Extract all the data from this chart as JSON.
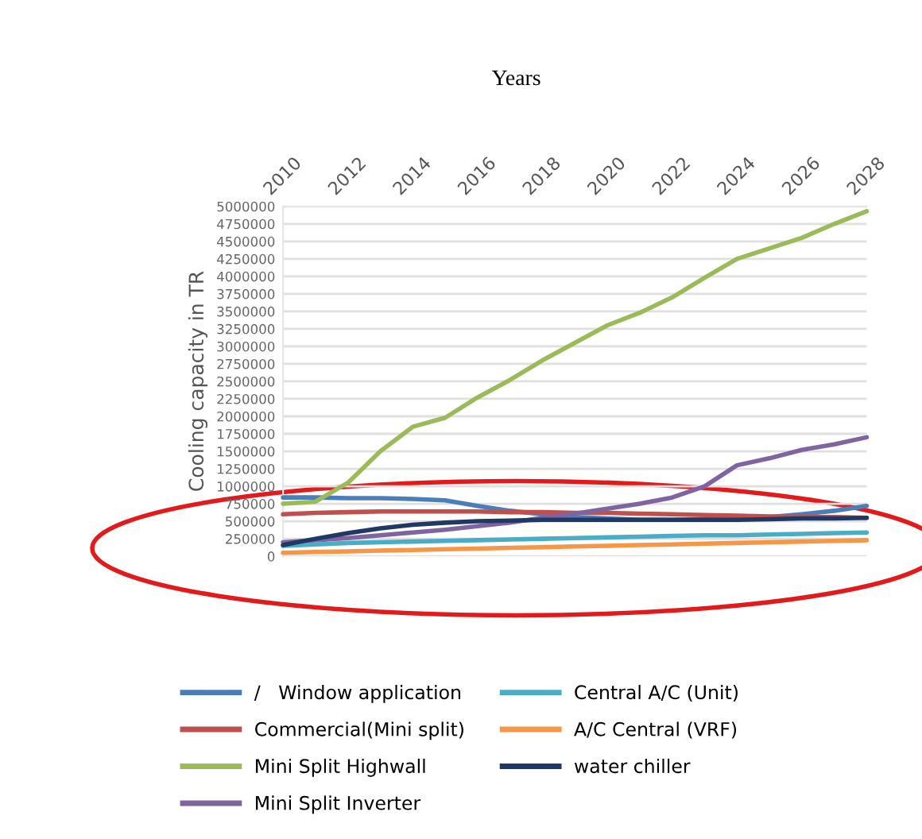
{
  "chart_data": {
    "type": "line",
    "title": "Years",
    "ylabel": "Cooling capacity in TR",
    "x": [
      2010,
      2011,
      2012,
      2013,
      2014,
      2015,
      2016,
      2017,
      2018,
      2019,
      2020,
      2021,
      2022,
      2023,
      2024,
      2025,
      2026,
      2027,
      2028
    ],
    "xlim": [
      2010,
      2028
    ],
    "xticks": [
      2010,
      2012,
      2014,
      2016,
      2018,
      2020,
      2022,
      2024,
      2026,
      2028
    ],
    "ylim": [
      0,
      5000000
    ],
    "yticks": [
      0,
      250000,
      500000,
      750000,
      1000000,
      1250000,
      1500000,
      1750000,
      2000000,
      2250000,
      2500000,
      2750000,
      3000000,
      3250000,
      3500000,
      3750000,
      4000000,
      4250000,
      4500000,
      4750000,
      5000000
    ],
    "grid": "y",
    "legend": "bottom",
    "line_style": "solid",
    "marker": "none",
    "series": [
      {
        "name": "/   Window application",
        "color": "#4a7ebb",
        "values": [
          840000,
          840000,
          830000,
          830000,
          820000,
          800000,
          720000,
          650000,
          600000,
          560000,
          540000,
          520000,
          520000,
          530000,
          540000,
          560000,
          600000,
          650000,
          720000
        ]
      },
      {
        "name": "Commercial(Mini split)",
        "color": "#c0504d",
        "values": [
          600000,
          620000,
          630000,
          640000,
          640000,
          640000,
          640000,
          630000,
          630000,
          620000,
          620000,
          610000,
          600000,
          590000,
          580000,
          570000,
          560000,
          560000,
          550000
        ]
      },
      {
        "name": "Mini Split Highwall",
        "color": "#9bbb59",
        "values": [
          750000,
          780000,
          1050000,
          1500000,
          1850000,
          1980000,
          2270000,
          2520000,
          2800000,
          3050000,
          3300000,
          3480000,
          3700000,
          3980000,
          4250000,
          4400000,
          4550000,
          4750000,
          4930000
        ]
      },
      {
        "name": "Mini Split Inverter",
        "color": "#8064a2",
        "values": [
          200000,
          230000,
          260000,
          300000,
          340000,
          380000,
          430000,
          480000,
          550000,
          610000,
          680000,
          750000,
          840000,
          1000000,
          1300000,
          1400000,
          1520000,
          1600000,
          1700000
        ]
      },
      {
        "name": "Central A/C (Unit)",
        "color": "#4bacc6",
        "values": [
          150000,
          170000,
          190000,
          200000,
          210000,
          220000,
          230000,
          240000,
          250000,
          260000,
          270000,
          280000,
          290000,
          300000,
          300000,
          310000,
          320000,
          330000,
          340000
        ]
      },
      {
        "name": "A/C Central (VRF)",
        "color": "#f79646",
        "values": [
          50000,
          60000,
          70000,
          80000,
          90000,
          100000,
          110000,
          120000,
          130000,
          140000,
          150000,
          160000,
          170000,
          180000,
          190000,
          200000,
          210000,
          220000,
          230000
        ]
      },
      {
        "name": "water chiller",
        "color": "#1f3864",
        "values": [
          160000,
          250000,
          330000,
          400000,
          450000,
          480000,
          500000,
          510000,
          520000,
          520000,
          520000,
          520000,
          520000,
          520000,
          520000,
          530000,
          540000,
          540000,
          550000
        ]
      }
    ]
  }
}
